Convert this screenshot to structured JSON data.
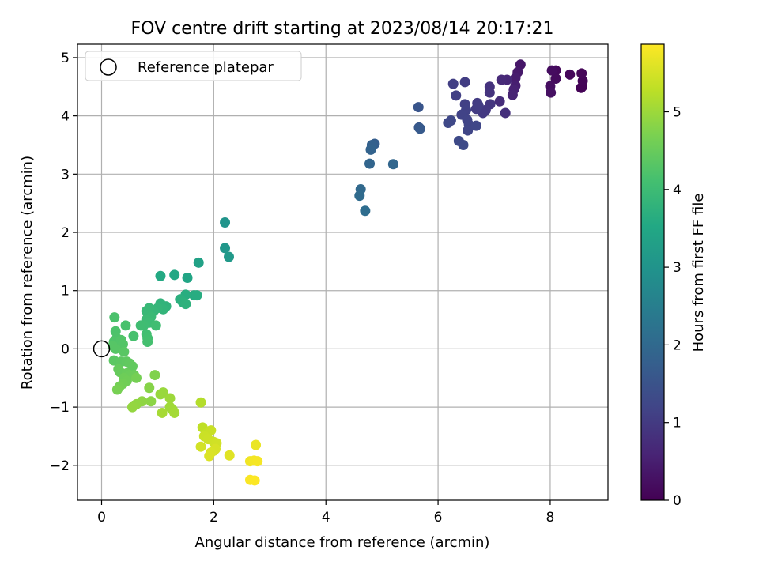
{
  "chart_data": {
    "type": "scatter",
    "title": "FOV centre drift starting at 2023/08/14 20:17:21",
    "xlabel": "Angular distance from reference (arcmin)",
    "ylabel": "Rotation from reference (arcmin)",
    "xlim": [
      -0.43,
      9.03
    ],
    "ylim": [
      -2.6,
      5.23
    ],
    "xticks": [
      0,
      2,
      4,
      6,
      8
    ],
    "yticks": [
      -2,
      -1,
      0,
      1,
      2,
      3,
      4,
      5
    ],
    "xtick_labels": [
      "0",
      "2",
      "4",
      "6",
      "8"
    ],
    "ytick_labels": [
      "−2",
      "−1",
      "0",
      "1",
      "2",
      "3",
      "4",
      "5"
    ],
    "grid": true,
    "colormap": "viridis",
    "colorbar": {
      "label": "Hours from first FF file",
      "range": [
        0,
        5.87
      ],
      "ticks": [
        0,
        1,
        2,
        3,
        4,
        5
      ],
      "tick_labels": [
        "0",
        "1",
        "2",
        "3",
        "4",
        "5"
      ]
    },
    "legend": {
      "placement": "top-left",
      "entries": [
        {
          "label": "Reference platepar",
          "marker": "open-circle"
        }
      ]
    },
    "reference_point": {
      "x": 0,
      "y": 0
    },
    "points": [
      [
        8.57,
        4.5,
        0.0
      ],
      [
        8.55,
        4.48,
        0.03
      ],
      [
        8.58,
        4.6,
        0.05
      ],
      [
        8.56,
        4.73,
        0.08
      ],
      [
        8.35,
        4.71,
        0.1
      ],
      [
        8.1,
        4.78,
        0.13
      ],
      [
        8.1,
        4.64,
        0.16
      ],
      [
        8.03,
        4.78,
        0.19
      ],
      [
        8.0,
        4.51,
        0.22
      ],
      [
        8.01,
        4.4,
        0.25
      ],
      [
        7.47,
        4.88,
        0.35
      ],
      [
        7.42,
        4.75,
        0.4
      ],
      [
        7.38,
        4.65,
        0.45
      ],
      [
        7.38,
        4.52,
        0.5
      ],
      [
        7.35,
        4.45,
        0.55
      ],
      [
        7.33,
        4.36,
        0.6
      ],
      [
        7.23,
        4.62,
        0.65
      ],
      [
        7.13,
        4.62,
        0.7
      ],
      [
        7.1,
        4.25,
        0.75
      ],
      [
        7.2,
        4.05,
        0.8
      ],
      [
        6.92,
        4.5,
        0.85
      ],
      [
        6.92,
        4.4,
        0.88
      ],
      [
        6.93,
        4.2,
        0.92
      ],
      [
        6.85,
        4.1,
        0.95
      ],
      [
        6.8,
        4.05,
        0.98
      ],
      [
        6.7,
        4.22,
        1.0
      ],
      [
        6.68,
        4.12,
        1.02
      ],
      [
        6.72,
        4.18,
        1.04
      ],
      [
        6.48,
        4.58,
        1.05
      ],
      [
        6.27,
        4.55,
        1.08
      ],
      [
        6.32,
        4.35,
        1.1
      ],
      [
        6.48,
        4.2,
        1.12
      ],
      [
        6.5,
        4.1,
        1.14
      ],
      [
        6.42,
        4.02,
        1.16
      ],
      [
        6.52,
        3.93,
        1.18
      ],
      [
        6.55,
        3.85,
        1.2
      ],
      [
        6.53,
        3.75,
        1.22
      ],
      [
        6.68,
        3.83,
        1.24
      ],
      [
        6.23,
        3.92,
        1.26
      ],
      [
        6.18,
        3.88,
        1.28
      ],
      [
        6.37,
        3.57,
        1.3
      ],
      [
        6.45,
        3.5,
        1.32
      ],
      [
        5.65,
        4.15,
        1.55
      ],
      [
        5.66,
        3.8,
        1.6
      ],
      [
        5.68,
        3.78,
        1.65
      ],
      [
        4.87,
        3.52,
        1.75
      ],
      [
        4.82,
        3.5,
        1.8
      ],
      [
        4.8,
        3.42,
        1.85
      ],
      [
        4.78,
        3.18,
        1.9
      ],
      [
        5.2,
        3.17,
        1.92
      ],
      [
        4.62,
        2.74,
        2.0
      ],
      [
        4.6,
        2.63,
        2.05
      ],
      [
        4.7,
        2.37,
        2.1
      ],
      [
        2.2,
        2.17,
        3.0
      ],
      [
        2.2,
        1.73,
        3.1
      ],
      [
        2.27,
        1.58,
        3.15
      ],
      [
        1.73,
        1.48,
        3.35
      ],
      [
        1.53,
        1.22,
        3.45
      ],
      [
        1.3,
        1.27,
        3.5
      ],
      [
        1.05,
        1.25,
        3.55
      ],
      [
        1.65,
        0.92,
        3.6
      ],
      [
        1.7,
        0.92,
        3.62
      ],
      [
        1.5,
        0.93,
        3.65
      ],
      [
        1.4,
        0.85,
        3.7
      ],
      [
        1.45,
        0.8,
        3.72
      ],
      [
        1.5,
        0.77,
        3.75
      ],
      [
        1.15,
        0.73,
        3.78
      ],
      [
        1.05,
        0.78,
        3.8
      ],
      [
        1.1,
        0.68,
        3.82
      ],
      [
        1.0,
        0.7,
        3.85
      ],
      [
        0.93,
        0.65,
        3.88
      ],
      [
        0.85,
        0.7,
        3.9
      ],
      [
        0.8,
        0.65,
        3.92
      ],
      [
        0.83,
        0.58,
        3.94
      ],
      [
        0.88,
        0.55,
        3.96
      ],
      [
        0.8,
        0.5,
        3.98
      ],
      [
        0.85,
        0.45,
        4.0
      ],
      [
        0.75,
        0.4,
        4.02
      ],
      [
        0.7,
        0.4,
        4.04
      ],
      [
        0.97,
        0.4,
        4.06
      ],
      [
        0.8,
        0.25,
        4.08
      ],
      [
        0.82,
        0.18,
        4.1
      ],
      [
        0.82,
        0.12,
        4.12
      ],
      [
        0.57,
        0.22,
        4.14
      ],
      [
        0.43,
        0.4,
        4.16
      ],
      [
        0.23,
        0.54,
        4.18
      ],
      [
        0.25,
        0.3,
        4.2
      ],
      [
        0.27,
        0.18,
        4.22
      ],
      [
        0.22,
        0.12,
        4.24
      ],
      [
        0.35,
        0.15,
        4.26
      ],
      [
        0.38,
        0.08,
        4.28
      ],
      [
        0.2,
        0.05,
        4.3
      ],
      [
        0.25,
        0.0,
        4.32
      ],
      [
        0.4,
        -0.05,
        4.34
      ],
      [
        0.22,
        -0.2,
        4.36
      ],
      [
        0.35,
        -0.22,
        4.38
      ],
      [
        0.45,
        -0.22,
        4.4
      ],
      [
        0.5,
        -0.25,
        4.42
      ],
      [
        0.55,
        -0.3,
        4.44
      ],
      [
        0.3,
        -0.35,
        4.46
      ],
      [
        0.33,
        -0.4,
        4.48
      ],
      [
        0.45,
        -0.42,
        4.5
      ],
      [
        0.5,
        -0.45,
        4.52
      ],
      [
        0.58,
        -0.45,
        4.54
      ],
      [
        0.4,
        -0.5,
        4.56
      ],
      [
        0.45,
        -0.55,
        4.58
      ],
      [
        0.38,
        -0.6,
        4.6
      ],
      [
        0.32,
        -0.65,
        4.62
      ],
      [
        0.62,
        -0.5,
        4.64
      ],
      [
        0.28,
        -0.7,
        4.66
      ],
      [
        0.95,
        -0.45,
        4.75
      ],
      [
        0.85,
        -0.67,
        4.8
      ],
      [
        0.88,
        -0.9,
        4.85
      ],
      [
        0.72,
        -0.9,
        4.88
      ],
      [
        0.62,
        -0.95,
        4.9
      ],
      [
        0.55,
        -1.0,
        4.92
      ],
      [
        1.05,
        -0.78,
        4.95
      ],
      [
        1.1,
        -0.75,
        4.97
      ],
      [
        1.22,
        -0.85,
        5.0
      ],
      [
        1.22,
        -1.0,
        5.02
      ],
      [
        1.27,
        -1.05,
        5.04
      ],
      [
        1.3,
        -1.1,
        5.06
      ],
      [
        1.08,
        -1.1,
        5.08
      ],
      [
        1.77,
        -0.92,
        5.2
      ],
      [
        1.8,
        -1.35,
        5.3
      ],
      [
        1.88,
        -1.45,
        5.35
      ],
      [
        1.95,
        -1.4,
        5.38
      ],
      [
        1.83,
        -1.5,
        5.4
      ],
      [
        1.9,
        -1.55,
        5.42
      ],
      [
        2.0,
        -1.6,
        5.44
      ],
      [
        2.05,
        -1.62,
        5.46
      ],
      [
        1.77,
        -1.68,
        5.48
      ],
      [
        2.0,
        -1.75,
        5.5
      ],
      [
        2.03,
        -1.72,
        5.52
      ],
      [
        1.95,
        -1.78,
        5.54
      ],
      [
        1.92,
        -1.84,
        5.56
      ],
      [
        2.28,
        -1.83,
        5.6
      ],
      [
        2.75,
        -1.65,
        5.7
      ],
      [
        2.65,
        -1.93,
        5.75
      ],
      [
        2.72,
        -1.92,
        5.78
      ],
      [
        2.78,
        -1.93,
        5.8
      ],
      [
        2.65,
        -2.25,
        5.83
      ],
      [
        2.73,
        -2.26,
        5.86
      ]
    ]
  }
}
